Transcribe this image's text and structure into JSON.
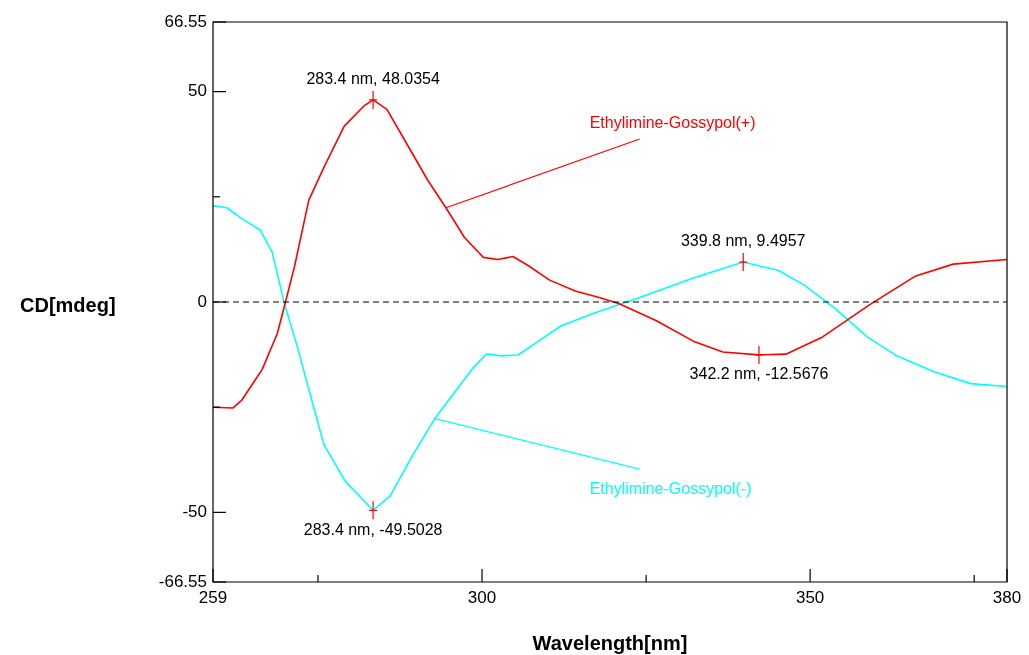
{
  "chart_data": {
    "type": "line",
    "xlabel": "Wavelength[nm]",
    "ylabel": "CD[mdeg]",
    "xlim": [
      259,
      380
    ],
    "ylim": [
      -66.55,
      66.55
    ],
    "xticks": [
      259,
      {
        "value": 275,
        "label": null
      },
      300,
      {
        "value": 325,
        "label": null
      },
      350,
      {
        "value": 375,
        "label": null
      },
      380
    ],
    "yticks": [
      -66.55,
      -50,
      {
        "value": -25,
        "label": null
      },
      0,
      {
        "value": 25,
        "label": null
      },
      50,
      66.55
    ],
    "grid": false,
    "legend": false,
    "marker": "none",
    "line_style": "solid",
    "ref_lines": [
      {
        "axis": "y",
        "value": 0,
        "color": "#000000",
        "line_style": "dashed"
      }
    ],
    "series": [
      {
        "name": "Ethylimine-Gossypol(+)",
        "color": "#ff0000",
        "x": [
          259,
          262,
          263.4,
          266.5,
          268.8,
          269.9,
          271.4,
          273.6,
          275.9,
          279,
          282,
          283.4,
          285.5,
          288.9,
          291.7,
          294.5,
          297.3,
          300.2,
          302.4,
          304.7,
          306.9,
          310.3,
          314.2,
          318,
          320.9,
          326.5,
          332.2,
          336.7,
          342.2,
          346.3,
          351.9,
          359.2,
          366.1,
          371.8,
          380
        ],
        "values": [
          -25,
          -25.2,
          -23.3,
          -16,
          -7.5,
          -0.9,
          8.3,
          24.2,
          32,
          41.8,
          46.6,
          48.0354,
          45.8,
          36.6,
          29,
          22.4,
          15.4,
          10.6,
          10.1,
          10.8,
          8.8,
          5.2,
          2.6,
          1,
          -0.4,
          -4.4,
          -9.3,
          -11.9,
          -12.5676,
          -12.4,
          -8.3,
          -0.5,
          6.2,
          9,
          10.1
        ]
      },
      {
        "name": "Ethylimine-Gossypol(-)",
        "color": "#00ffff",
        "x": [
          259,
          261.1,
          263.4,
          266.2,
          268,
          269.9,
          271.9,
          274.2,
          275.9,
          279.2,
          283.4,
          286,
          289.4,
          292.8,
          296.2,
          298.5,
          300.7,
          302.9,
          305.5,
          308.6,
          312,
          317.1,
          323.7,
          332.2,
          339.8,
          345.2,
          349.1,
          353.6,
          358.7,
          363.2,
          368.9,
          374.5,
          380
        ],
        "values": [
          22.9,
          22.4,
          19.8,
          17.1,
          11.9,
          -0.5,
          -10.9,
          -24.2,
          -33.9,
          -42.7,
          -49.5028,
          -46.1,
          -36.5,
          -27.7,
          -20.7,
          -15.9,
          -12.3,
          -12.8,
          -12.6,
          -9.3,
          -5.7,
          -2.6,
          0.9,
          5.7,
          9.4957,
          7.5,
          4,
          -1.3,
          -8.3,
          -12.8,
          -16.6,
          -19.4,
          -20.1
        ]
      }
    ],
    "annotations": [
      {
        "text": "283.4 nm, 48.0354",
        "x": 283.4,
        "y": 48.0354
      },
      {
        "text": "283.4 nm, -49.5028",
        "x": 283.4,
        "y": -49.5028
      },
      {
        "text": "339.8 nm, 9.4957",
        "x": 339.8,
        "y": 9.4957
      },
      {
        "text": "342.2 nm, -12.5676",
        "x": 342.2,
        "y": -12.5676
      }
    ]
  }
}
